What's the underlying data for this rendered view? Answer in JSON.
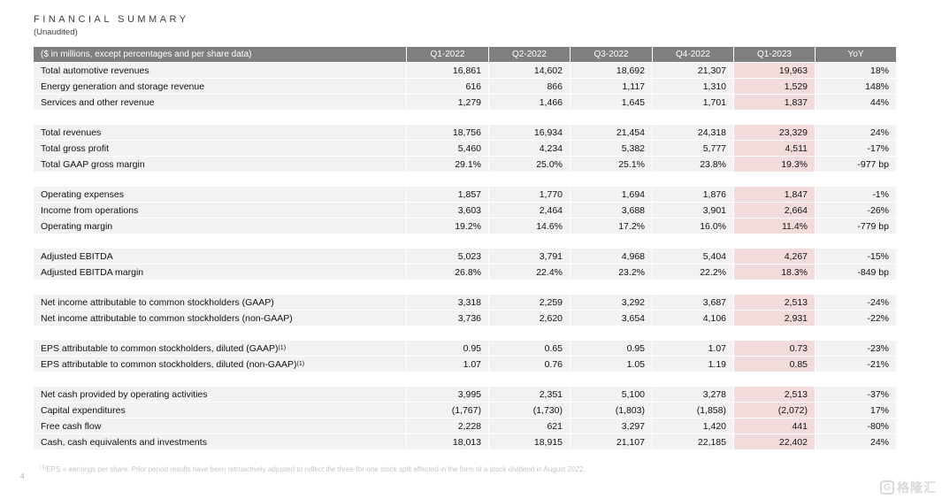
{
  "page": {
    "title": "FINANCIAL SUMMARY",
    "subtitle": "(Unaudited)",
    "page_number": "4",
    "footnote_sup": "(1)",
    "footnote_text": "EPS = earnings per share. Prior period results have been retroactively adjusted to reflect the three-for-one stock split effected in the form of a stock dividend in August 2022.",
    "watermark_text": "格隆汇",
    "watermark_icon": "G"
  },
  "colors": {
    "header_bg": "#7f7f7f",
    "header_text": "#ffffff",
    "row_bg": "#f2f2f2",
    "highlight_bg": "#f2dcdb",
    "title_text": "#3f3f3f",
    "footnote_text": "#c6c6c6"
  },
  "table": {
    "header": [
      "($ in millions, except percentages and per share data)",
      "Q1-2022",
      "Q2-2022",
      "Q3-2022",
      "Q4-2022",
      "Q1-2023",
      "YoY"
    ],
    "highlight_column": "Q1-2023",
    "sections": [
      {
        "rows": [
          {
            "label": "Total automotive revenues",
            "values": [
              "16,861",
              "14,602",
              "18,692",
              "21,307",
              "19,963",
              "18%"
            ]
          },
          {
            "label": "Energy generation and storage revenue",
            "values": [
              "616",
              "866",
              "1,117",
              "1,310",
              "1,529",
              "148%"
            ]
          },
          {
            "label": "Services and other revenue",
            "values": [
              "1,279",
              "1,466",
              "1,645",
              "1,701",
              "1,837",
              "44%"
            ]
          }
        ]
      },
      {
        "rows": [
          {
            "label": "Total revenues",
            "values": [
              "18,756",
              "16,934",
              "21,454",
              "24,318",
              "23,329",
              "24%"
            ]
          },
          {
            "label": "Total gross profit",
            "values": [
              "5,460",
              "4,234",
              "5,382",
              "5,777",
              "4,511",
              "-17%"
            ]
          },
          {
            "label": "Total GAAP gross margin",
            "values": [
              "29.1%",
              "25.0%",
              "25.1%",
              "23.8%",
              "19.3%",
              "-977 bp"
            ]
          }
        ]
      },
      {
        "rows": [
          {
            "label": "Operating expenses",
            "values": [
              "1,857",
              "1,770",
              "1,694",
              "1,876",
              "1,847",
              "-1%"
            ]
          },
          {
            "label": "Income from operations",
            "values": [
              "3,603",
              "2,464",
              "3,688",
              "3,901",
              "2,664",
              "-26%"
            ]
          },
          {
            "label": "Operating margin",
            "values": [
              "19.2%",
              "14.6%",
              "17.2%",
              "16.0%",
              "11.4%",
              "-779 bp"
            ]
          }
        ]
      },
      {
        "rows": [
          {
            "label": "Adjusted EBITDA",
            "values": [
              "5,023",
              "3,791",
              "4,968",
              "5,404",
              "4,267",
              "-15%"
            ]
          },
          {
            "label": "Adjusted EBITDA margin",
            "values": [
              "26.8%",
              "22.4%",
              "23.2%",
              "22.2%",
              "18.3%",
              "-849 bp"
            ]
          }
        ]
      },
      {
        "rows": [
          {
            "label": "Net income attributable to common stockholders (GAAP)",
            "values": [
              "3,318",
              "2,259",
              "3,292",
              "3,687",
              "2,513",
              "-24%"
            ]
          },
          {
            "label": "Net income attributable to common stockholders (non-GAAP)",
            "values": [
              "3,736",
              "2,620",
              "3,654",
              "4,106",
              "2,931",
              "-22%"
            ]
          }
        ]
      },
      {
        "rows": [
          {
            "label": "EPS attributable to common stockholders, diluted (GAAP)",
            "label_sup": "(1)",
            "values": [
              "0.95",
              "0.65",
              "0.95",
              "1.07",
              "0.73",
              "-23%"
            ]
          },
          {
            "label": "EPS attributable to common stockholders, diluted (non-GAAP)",
            "label_sup": "(1)",
            "values": [
              "1.07",
              "0.76",
              "1.05",
              "1.19",
              "0.85",
              "-21%"
            ]
          }
        ]
      },
      {
        "rows": [
          {
            "label": "Net cash provided by operating activities",
            "values": [
              "3,995",
              "2,351",
              "5,100",
              "3,278",
              "2,513",
              "-37%"
            ]
          },
          {
            "label": "Capital expenditures",
            "values": [
              "(1,767)",
              "(1,730)",
              "(1,803)",
              "(1,858)",
              "(2,072)",
              "17%"
            ]
          },
          {
            "label": "Free cash flow",
            "values": [
              "2,228",
              "621",
              "3,297",
              "1,420",
              "441",
              "-80%"
            ]
          },
          {
            "label": "Cash, cash equivalents and investments",
            "values": [
              "18,013",
              "18,915",
              "21,107",
              "22,185",
              "22,402",
              "24%"
            ]
          }
        ]
      }
    ]
  }
}
